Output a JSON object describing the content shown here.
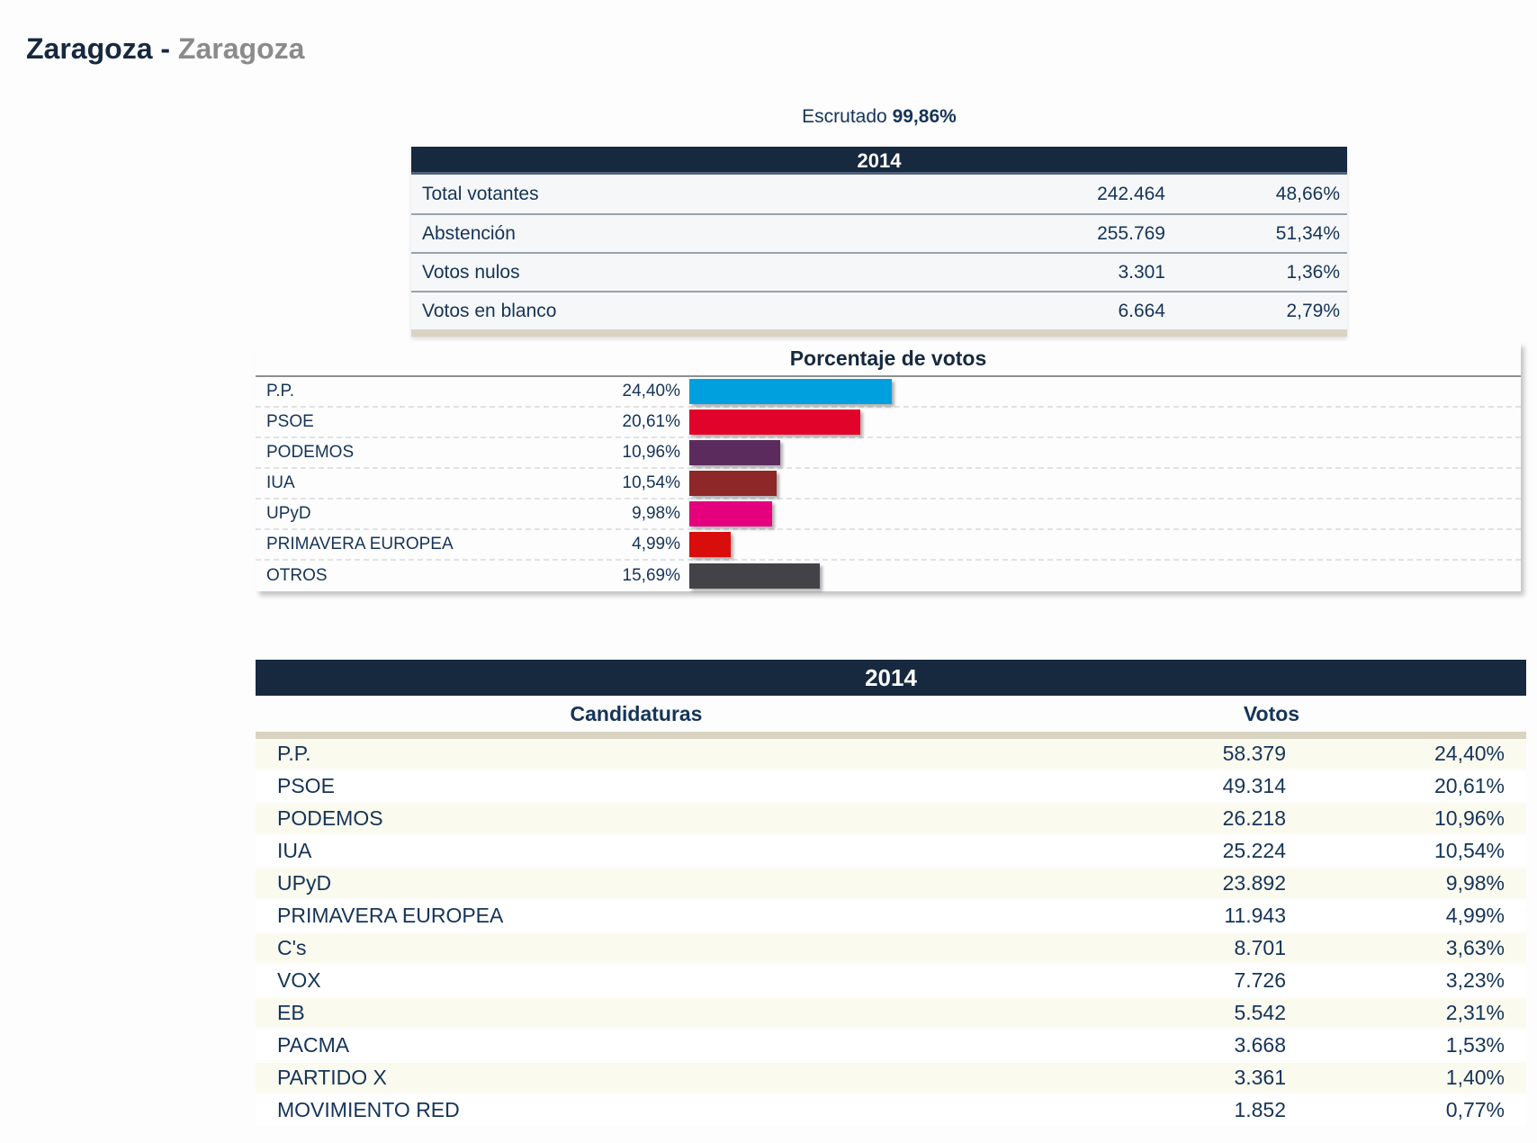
{
  "page": {
    "title_primary": "Zaragoza",
    "title_separator": "-",
    "title_secondary": "Zaragoza",
    "escrutado_label": "Escrutado",
    "escrutado_value": "99,86%"
  },
  "summary_table": {
    "year": "2014",
    "rows": [
      {
        "label": "Total votantes",
        "votes": "242.464",
        "pct": "48,66%"
      },
      {
        "label": "Abstención",
        "votes": "255.769",
        "pct": "51,34%"
      },
      {
        "label": "Votos nulos",
        "votes": "3.301",
        "pct": "1,36%"
      },
      {
        "label": "Votos en blanco",
        "votes": "6.664",
        "pct": "2,79%"
      }
    ]
  },
  "chart_data": {
    "type": "bar",
    "orientation": "horizontal",
    "title": "Porcentaje de votos",
    "categories": [
      "P.P.",
      "PSOE",
      "PODEMOS",
      "IUA",
      "UPyD",
      "PRIMAVERA EUROPEA",
      "OTROS"
    ],
    "values": [
      24.4,
      20.61,
      10.96,
      10.54,
      9.98,
      4.99,
      15.69
    ],
    "value_labels": [
      "24,40%",
      "20,61%",
      "10,96%",
      "10,54%",
      "9,98%",
      "4,99%",
      "15,69%"
    ],
    "bar_colors": [
      "#00a0df",
      "#e2032b",
      "#5b2b5e",
      "#8e2727",
      "#e5007d",
      "#d90d0b",
      "#434347"
    ],
    "xlim": [
      0,
      100
    ],
    "grid": "dashed row separators",
    "legend": "none"
  },
  "results_table": {
    "year": "2014",
    "col_candidaturas": "Candidaturas",
    "col_votos": "Votos",
    "rows": [
      {
        "party": "P.P.",
        "votes": "58.379",
        "pct": "24,40%"
      },
      {
        "party": "PSOE",
        "votes": "49.314",
        "pct": "20,61%"
      },
      {
        "party": "PODEMOS",
        "votes": "26.218",
        "pct": "10,96%"
      },
      {
        "party": "IUA",
        "votes": "25.224",
        "pct": "10,54%"
      },
      {
        "party": "UPyD",
        "votes": "23.892",
        "pct": "9,98%"
      },
      {
        "party": "PRIMAVERA EUROPEA",
        "votes": "11.943",
        "pct": "4,99%"
      },
      {
        "party": "C's",
        "votes": "8.701",
        "pct": "3,63%"
      },
      {
        "party": "VOX",
        "votes": "7.726",
        "pct": "3,23%"
      },
      {
        "party": "EB",
        "votes": "5.542",
        "pct": "2,31%"
      },
      {
        "party": "PACMA",
        "votes": "3.668",
        "pct": "1,53%"
      },
      {
        "party": "PARTIDO X",
        "votes": "3.361",
        "pct": "1,40%"
      },
      {
        "party": "MOVIMIENTO RED",
        "votes": "1.852",
        "pct": "0,77%"
      }
    ]
  },
  "colors": {
    "header_navy": "#16293f",
    "text_navy": "#153459",
    "title_gray": "#8b8b8b",
    "beige_bar": "#d9d3c1",
    "row_ivory": "#fafaef"
  }
}
